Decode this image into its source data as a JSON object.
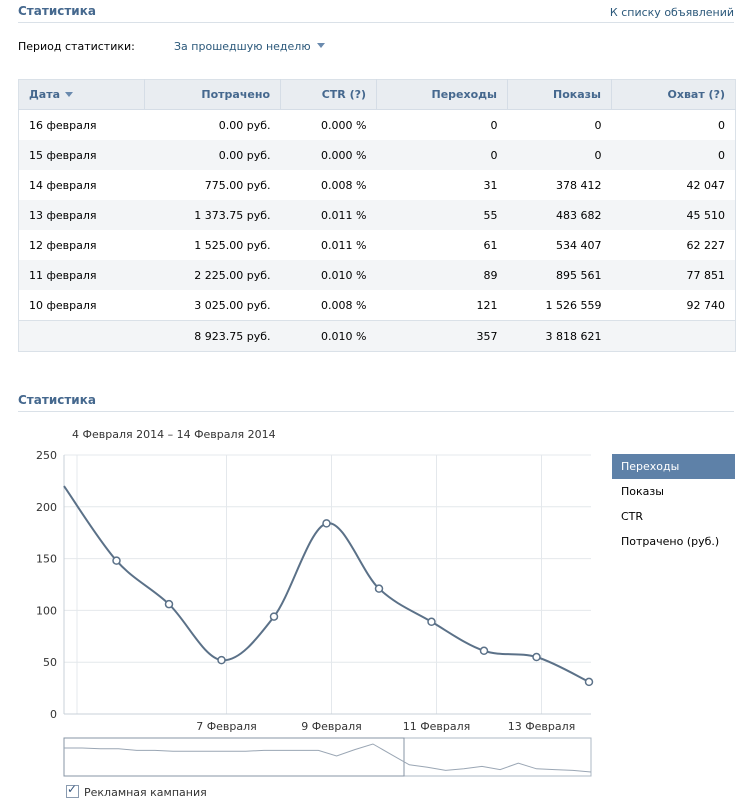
{
  "header": {
    "title": "Статистика",
    "back_link": "К списку объявлений"
  },
  "period": {
    "label": "Период статистики:",
    "value": "За прошедшую неделю"
  },
  "table": {
    "columns": [
      "Дата",
      "Потрачено",
      "CTR (?)",
      "Переходы",
      "Показы",
      "Охват (?)"
    ],
    "rows": [
      [
        "16 февраля",
        "0.00 руб.",
        "0.000 %",
        "0",
        "0",
        "0"
      ],
      [
        "15 февраля",
        "0.00 руб.",
        "0.000 %",
        "0",
        "0",
        "0"
      ],
      [
        "14 февраля",
        "775.00 руб.",
        "0.008 %",
        "31",
        "378 412",
        "42 047"
      ],
      [
        "13 февраля",
        "1 373.75 руб.",
        "0.011 %",
        "55",
        "483 682",
        "45 510"
      ],
      [
        "12 февраля",
        "1 525.00 руб.",
        "0.011 %",
        "61",
        "534 407",
        "62 227"
      ],
      [
        "11 февраля",
        "2 225.00 руб.",
        "0.010 %",
        "89",
        "895 561",
        "77 851"
      ],
      [
        "10 февраля",
        "3 025.00 руб.",
        "0.008 %",
        "121",
        "1 526 559",
        "92 740"
      ]
    ],
    "total": [
      "",
      "8 923.75 руб.",
      "0.010 %",
      "357",
      "3 818 621",
      ""
    ]
  },
  "chart_section": {
    "title": "Статистика",
    "range": "4 Февраля 2014 – 14 Февраля 2014"
  },
  "chart_data": {
    "type": "line",
    "title": "",
    "xlabel": "",
    "ylabel": "",
    "x": [
      "4 Февраля",
      "5 Февраля",
      "6 Февраля",
      "7 Февраля",
      "8 Февраля",
      "9 Февраля",
      "10 Февраля",
      "11 Февраля",
      "12 Февраля",
      "13 Февраля",
      "14 Февраля"
    ],
    "series": [
      {
        "values": [
          220,
          148,
          106,
          52,
          94,
          184,
          121,
          89,
          61,
          55,
          31
        ]
      }
    ],
    "ylim": [
      0,
      250
    ],
    "yticks": [
      "0",
      "50",
      "100",
      "150",
      "200",
      "250"
    ],
    "xtick_labels": [
      "7 Февраля",
      "9 Февраля",
      "11 Февраля",
      "13 Февраля"
    ],
    "grid": true,
    "line_color": "#5b7188",
    "navigator_values": [
      28,
      28,
      27,
      27,
      25,
      25,
      24,
      24,
      24,
      24,
      24,
      25,
      25,
      25,
      25,
      18,
      26,
      33,
      20,
      7,
      4,
      0,
      2,
      5,
      1,
      9,
      2,
      1,
      0,
      -2
    ]
  },
  "legend": {
    "items": [
      "Переходы",
      "Показы",
      "CTR",
      "Потрачено (руб.)"
    ],
    "active_color": "#5e81a8"
  },
  "campaign": {
    "label": "Рекламная кампания",
    "checked": true
  }
}
